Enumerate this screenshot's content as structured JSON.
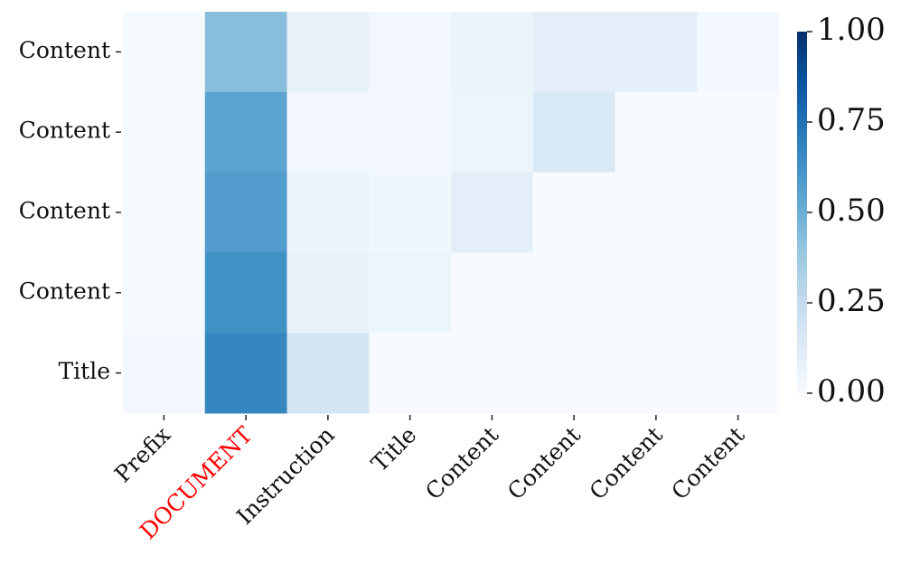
{
  "chart_data": {
    "type": "heatmap",
    "rows": [
      "Content",
      "Content",
      "Content",
      "Content",
      "Title"
    ],
    "columns": [
      "Prefix",
      "DOCUMENT",
      "Instruction",
      "Title",
      "Content",
      "Content",
      "Content",
      "Content"
    ],
    "column_colors": [
      "#111111",
      "#ff0000",
      "#111111",
      "#111111",
      "#111111",
      "#111111",
      "#111111",
      "#111111"
    ],
    "values": [
      [
        0.01,
        0.43,
        0.08,
        0.03,
        0.06,
        0.1,
        0.1,
        0.02
      ],
      [
        0.01,
        0.55,
        0.03,
        0.03,
        0.05,
        0.15,
        0,
        0
      ],
      [
        0.01,
        0.58,
        0.06,
        0.04,
        0.1,
        0,
        0,
        0
      ],
      [
        0.01,
        0.63,
        0.07,
        0.05,
        0,
        0,
        0,
        0
      ],
      [
        0.02,
        0.67,
        0.18,
        0,
        0,
        0,
        0,
        0
      ]
    ],
    "colormap": "Blues",
    "clim": [
      0,
      1
    ],
    "cticks": [
      {
        "value": 0,
        "label": "0.00"
      },
      {
        "value": 0.25,
        "label": "0.25"
      },
      {
        "value": 0.5,
        "label": "0.50"
      },
      {
        "value": 0.75,
        "label": "0.75"
      },
      {
        "value": 1,
        "label": "1.00"
      }
    ]
  }
}
